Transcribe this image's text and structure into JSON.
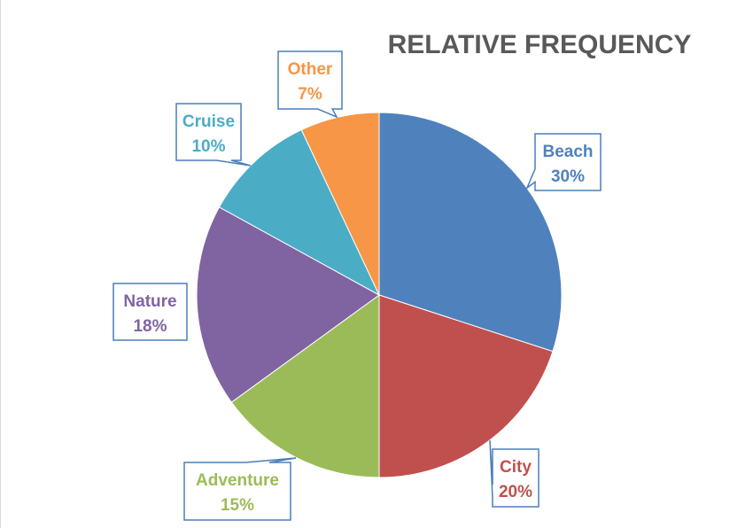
{
  "chart_data": {
    "type": "pie",
    "title": "RELATIVE FREQUENCY",
    "categories": [
      "Beach",
      "City",
      "Adventure",
      "Nature",
      "Cruise",
      "Other"
    ],
    "values": [
      30,
      20,
      15,
      18,
      10,
      7
    ],
    "value_labels": [
      "30%",
      "20%",
      "15%",
      "18%",
      "10%",
      "7%"
    ],
    "colors": [
      "#4f81bd",
      "#c0504d",
      "#9bbb59",
      "#8064a2",
      "#4bacc6",
      "#f79646"
    ],
    "start_angle": "12 o'clock",
    "direction": "clockwise",
    "data_labels": "callouts outside slices",
    "legend": "none"
  }
}
